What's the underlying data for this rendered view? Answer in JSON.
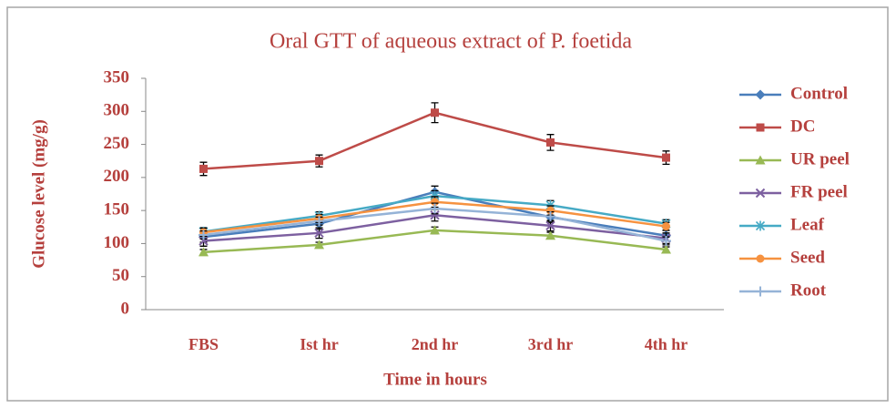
{
  "chart_data": {
    "type": "line",
    "title": "Oral GTT of aqueous extract of P. foetida",
    "x_label": "Time in hours",
    "y_label": "Glucose level (mg/g)",
    "categories": [
      "FBS",
      "Ist hr",
      "2nd hr",
      "3rd hr",
      "4th hr"
    ],
    "ylim": [
      0,
      350
    ],
    "yticks": [
      0,
      50,
      100,
      150,
      200,
      250,
      300,
      350
    ],
    "legend": "right",
    "series": [
      {
        "name": "Control",
        "color": "#4a7ebb",
        "marker": "diamond",
        "values": [
          110,
          130,
          178,
          140,
          112
        ],
        "errors": [
          8,
          8,
          9,
          8,
          8
        ]
      },
      {
        "name": "DC",
        "color": "#be4b48",
        "marker": "square",
        "values": [
          213,
          225,
          298,
          253,
          230
        ],
        "errors": [
          10,
          9,
          15,
          12,
          10
        ]
      },
      {
        "name": "UR peel",
        "color": "#98b954",
        "marker": "triangle",
        "values": [
          87,
          98,
          120,
          112,
          91
        ],
        "errors": [
          4,
          4,
          5,
          5,
          4
        ]
      },
      {
        "name": "FR peel",
        "color": "#7d60a0",
        "marker": "x",
        "values": [
          104,
          116,
          143,
          127,
          108
        ],
        "errors": [
          8,
          8,
          9,
          8,
          8
        ]
      },
      {
        "name": "Leaf",
        "color": "#46aac5",
        "marker": "star",
        "values": [
          118,
          142,
          172,
          158,
          130
        ],
        "errors": [
          6,
          6,
          8,
          7,
          6
        ]
      },
      {
        "name": "Seed",
        "color": "#f69240",
        "marker": "circle",
        "values": [
          117,
          138,
          163,
          150,
          126
        ],
        "errors": [
          6,
          6,
          8,
          7,
          6
        ]
      },
      {
        "name": "Root",
        "color": "#95b3d7",
        "marker": "plus",
        "values": [
          113,
          134,
          153,
          141,
          104
        ],
        "errors": [
          6,
          6,
          8,
          7,
          6
        ]
      }
    ]
  }
}
